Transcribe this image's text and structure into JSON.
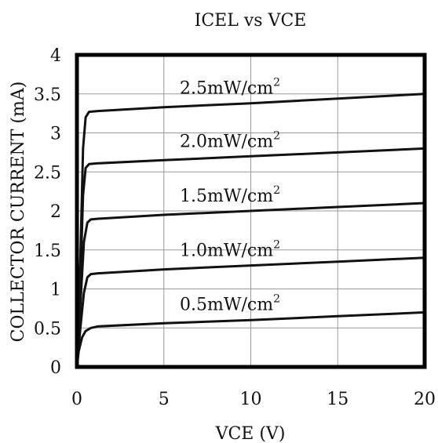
{
  "chart_data": {
    "type": "line",
    "title": "ICEL vs VCE",
    "xlabel": "VCE (V)",
    "ylabel": "COLLECTOR CURRENT (mA)",
    "xlim": [
      0,
      20
    ],
    "ylim": [
      0,
      4
    ],
    "x_ticks": [
      "0",
      "5",
      "10",
      "15",
      "20"
    ],
    "y_ticks": [
      "0",
      "0.5",
      "1",
      "1.5",
      "2",
      "2.5",
      "3",
      "3.5",
      "4"
    ],
    "grid": true,
    "series": [
      {
        "name": "0.5mW/cm2",
        "label_main": "0.5mW/cm",
        "label_sup": "2",
        "x": [
          0,
          0.1,
          0.3,
          0.5,
          0.8,
          1.2,
          5,
          10,
          15,
          20
        ],
        "y": [
          0,
          0.2,
          0.38,
          0.46,
          0.5,
          0.52,
          0.56,
          0.6,
          0.65,
          0.7
        ]
      },
      {
        "name": "1.0mW/cm2",
        "label_main": "1.0mW/cm",
        "label_sup": "2",
        "x": [
          0,
          0.2,
          0.4,
          0.6,
          0.8,
          1.2,
          5,
          10,
          15,
          20
        ],
        "y": [
          0,
          0.5,
          0.95,
          1.15,
          1.19,
          1.2,
          1.25,
          1.3,
          1.35,
          1.4
        ]
      },
      {
        "name": "1.5mW/cm2",
        "label_main": "1.5mW/cm",
        "label_sup": "2",
        "x": [
          0,
          0.2,
          0.4,
          0.6,
          0.8,
          1.2,
          5,
          10,
          15,
          20
        ],
        "y": [
          0,
          0.8,
          1.6,
          1.85,
          1.89,
          1.9,
          1.95,
          2.0,
          2.05,
          2.1
        ]
      },
      {
        "name": "2.0mW/cm2",
        "label_main": "2.0mW/cm",
        "label_sup": "2",
        "x": [
          0,
          0.2,
          0.35,
          0.5,
          0.7,
          1.2,
          5,
          10,
          15,
          20
        ],
        "y": [
          0,
          1.1,
          2.2,
          2.55,
          2.6,
          2.61,
          2.65,
          2.7,
          2.75,
          2.8
        ]
      },
      {
        "name": "2.5mW/cm2",
        "label_main": "2.5mW/cm",
        "label_sup": "2",
        "x": [
          0,
          0.2,
          0.35,
          0.5,
          0.7,
          1.2,
          5,
          10,
          15,
          20
        ],
        "y": [
          0,
          1.4,
          2.8,
          3.2,
          3.27,
          3.28,
          3.33,
          3.38,
          3.44,
          3.5
        ]
      }
    ]
  }
}
